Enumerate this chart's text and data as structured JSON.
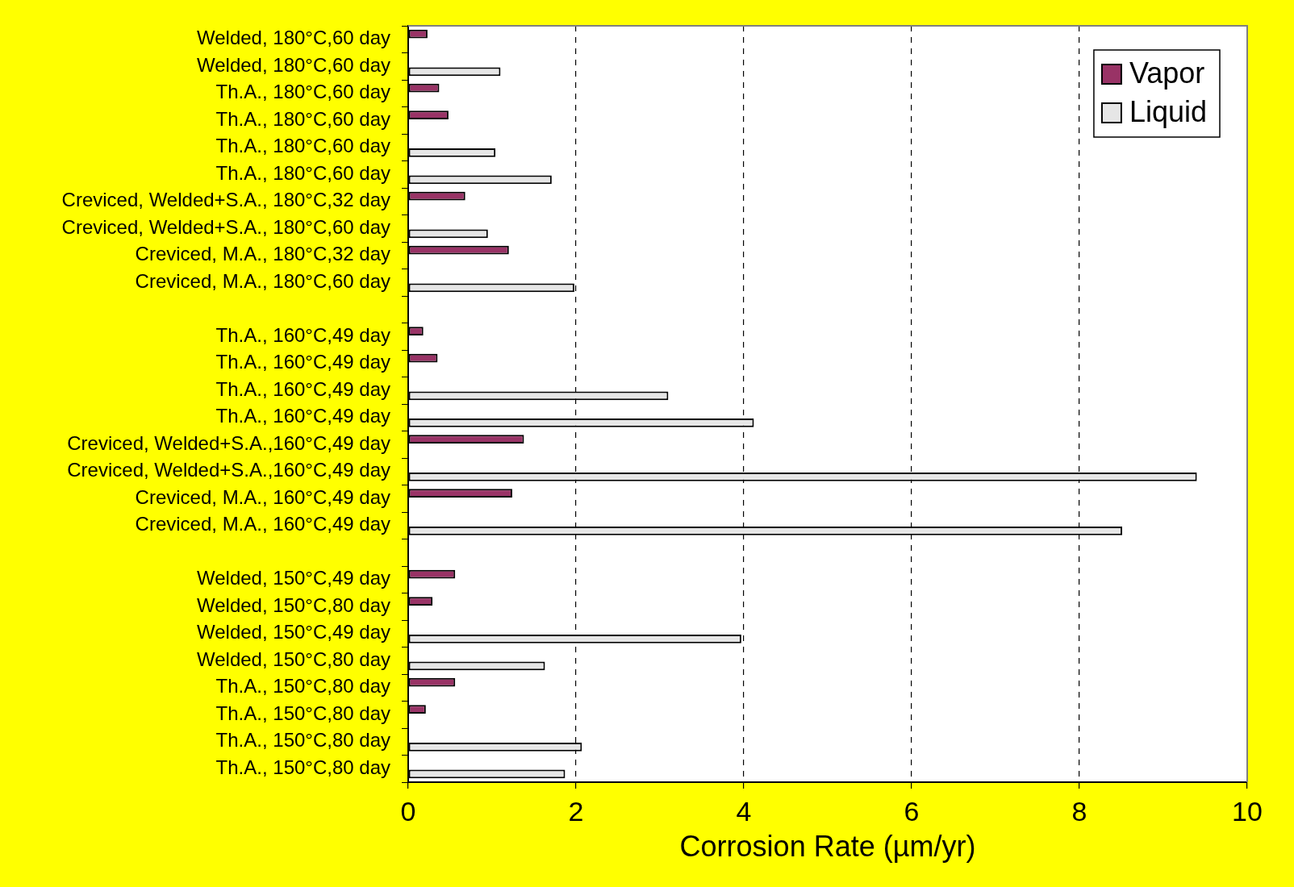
{
  "chart_data": {
    "type": "bar",
    "orientation": "horizontal",
    "xlabel": "Corrosion Rate (µm/yr)",
    "categories": [
      "Welded, 180°C,60 day",
      "Welded, 180°C,60 day",
      "Th.A., 180°C,60 day",
      "Th.A., 180°C,60 day",
      "Th.A., 180°C,60 day",
      "Th.A., 180°C,60 day",
      "Creviced, Welded+S.A., 180°C,32 day",
      "Creviced, Welded+S.A., 180°C,60 day",
      "Creviced, M.A., 180°C,32 day",
      "Creviced, M.A., 180°C,60 day",
      null,
      "Th.A., 160°C,49 day",
      "Th.A., 160°C,49 day",
      "Th.A., 160°C,49 day",
      "Th.A., 160°C,49 day",
      "Creviced, Welded+S.A.,160°C,49 day",
      "Creviced, Welded+S.A.,160°C,49 day",
      "Creviced, M.A., 160°C,49 day",
      "Creviced, M.A., 160°C,49 day",
      null,
      "Welded, 150°C,49 day",
      "Welded, 150°C,80 day",
      "Welded, 150°C,49 day",
      "Welded, 150°C,80 day",
      "Th.A., 150°C,80 day",
      "Th.A., 150°C,80 day",
      "Th.A., 150°C,80 day",
      "Th.A., 150°C,80 day"
    ],
    "series": [
      {
        "name": "Vapor",
        "color": "#993366",
        "values": [
          0.23,
          null,
          0.37,
          0.48,
          null,
          null,
          0.68,
          null,
          1.2,
          null,
          null,
          0.18,
          0.35,
          null,
          null,
          1.38,
          null,
          1.24,
          null,
          null,
          0.56,
          0.29,
          null,
          null,
          0.56,
          0.21,
          null,
          null
        ]
      },
      {
        "name": "Liquid",
        "color": "#e6e6e6",
        "values": [
          null,
          1.1,
          null,
          null,
          1.04,
          1.71,
          null,
          0.95,
          null,
          1.98,
          null,
          null,
          null,
          3.1,
          4.12,
          null,
          9.4,
          null,
          8.51,
          null,
          null,
          null,
          3.97,
          1.63,
          null,
          null,
          2.07,
          1.87
        ]
      }
    ],
    "xlim": [
      0,
      10
    ],
    "xticks": [
      0,
      2,
      4,
      6,
      8,
      10
    ],
    "grid": "x",
    "legend": "top right"
  }
}
